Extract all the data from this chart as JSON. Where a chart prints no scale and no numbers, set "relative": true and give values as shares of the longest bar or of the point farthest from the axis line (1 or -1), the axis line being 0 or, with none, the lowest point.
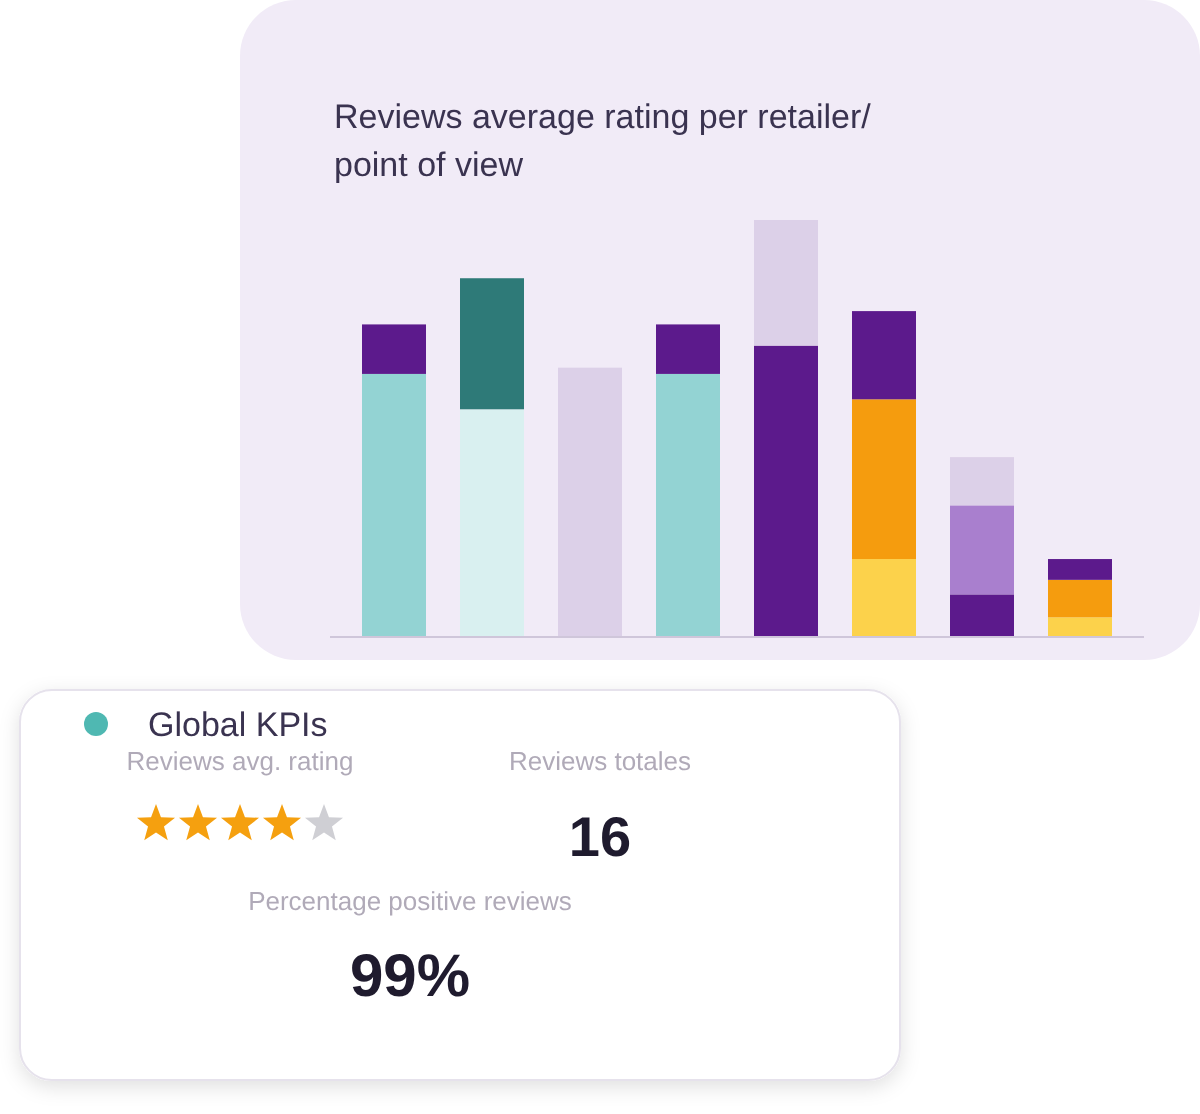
{
  "chart_data": [
    {
      "type": "bar",
      "title": "Reviews average rating per retailer/ point of view",
      "relative": true,
      "stacked": true,
      "categories": [
        null,
        null,
        null,
        null,
        null,
        null,
        null,
        null
      ],
      "series": [
        {
          "color": "#93d3d3",
          "values": [
            0.63,
            null,
            null,
            0.63,
            null,
            null,
            null,
            null
          ]
        },
        {
          "color": "#d9f0f0",
          "values": [
            null,
            0.545,
            null,
            null,
            null,
            null,
            null,
            null
          ]
        },
        {
          "color": "#2e7a78",
          "values": [
            null,
            0.315,
            null,
            null,
            null,
            null,
            null,
            null
          ]
        },
        {
          "color": "#fcd24b",
          "values": [
            null,
            null,
            null,
            null,
            null,
            0.185,
            null,
            0.045
          ]
        },
        {
          "color": "#f59c0e",
          "values": [
            null,
            null,
            null,
            null,
            null,
            0.384,
            null,
            0.09
          ]
        },
        {
          "color": "#5c1a8c",
          "values": [
            0.119,
            null,
            null,
            0.119,
            0.698,
            0.212,
            0.1,
            0.05
          ]
        },
        {
          "color": "#a97fce",
          "values": [
            null,
            null,
            null,
            null,
            null,
            null,
            0.214,
            null
          ]
        },
        {
          "color": "#dcd0e8",
          "values": [
            null,
            null,
            0.645,
            null,
            0.302,
            null,
            0.116,
            null
          ]
        }
      ]
    },
    {
      "type": "other",
      "title": "Global KPIs",
      "categories": [
        "Reviews avg. rating",
        "Reviews totales",
        "Percentage positive reviews"
      ],
      "value_labels": [
        null,
        "16",
        "99%"
      ]
    }
  ]
}
